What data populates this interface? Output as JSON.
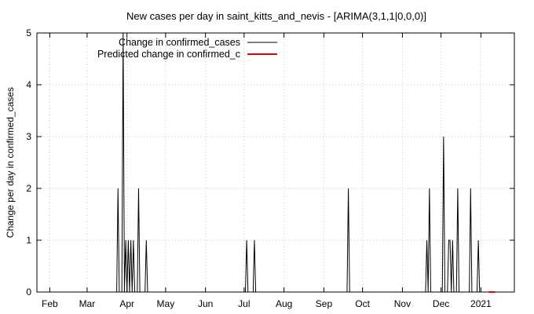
{
  "chart_data": {
    "type": "line",
    "title": "New cases per day in saint_kitts_and_nevis -  [ARIMA(3,1,1|0,0,0)]",
    "xlabel": "",
    "ylabel": "Change per day in confirmed_cases",
    "x_range": [
      "2021-01-19",
      "2021-01-19"
    ],
    "xlim": [
      "2020-01-22",
      "2021-01-27"
    ],
    "ylim": [
      0,
      5
    ],
    "y_ticks": [
      0,
      1,
      2,
      3,
      4,
      5
    ],
    "x_ticks": [
      {
        "date": "2020-02-01",
        "label": "Feb"
      },
      {
        "date": "2020-03-01",
        "label": "Mar"
      },
      {
        "date": "2020-04-01",
        "label": "Apr"
      },
      {
        "date": "2020-05-01",
        "label": "May"
      },
      {
        "date": "2020-06-01",
        "label": "Jun"
      },
      {
        "date": "2020-07-01",
        "label": "Jul"
      },
      {
        "date": "2020-08-01",
        "label": "Aug"
      },
      {
        "date": "2020-09-01",
        "label": "Sep"
      },
      {
        "date": "2020-10-01",
        "label": "Oct"
      },
      {
        "date": "2020-11-01",
        "label": "Nov"
      },
      {
        "date": "2020-12-01",
        "label": "Dec"
      },
      {
        "date": "2021-01-01",
        "label": "2021"
      }
    ],
    "grid": true,
    "legend_position": "top-left",
    "series": [
      {
        "name": "Change in confirmed_cases",
        "color": "#000000",
        "points": [
          [
            "2020-01-22",
            0
          ],
          [
            "2020-03-24",
            0
          ],
          [
            "2020-03-25",
            2
          ],
          [
            "2020-03-26",
            0
          ],
          [
            "2020-03-28",
            0
          ],
          [
            "2020-03-29",
            5
          ],
          [
            "2020-03-30",
            0
          ],
          [
            "2020-03-31",
            1
          ],
          [
            "2020-04-01",
            0
          ],
          [
            "2020-04-02",
            1
          ],
          [
            "2020-04-03",
            0
          ],
          [
            "2020-04-04",
            1
          ],
          [
            "2020-04-05",
            0
          ],
          [
            "2020-04-06",
            1
          ],
          [
            "2020-04-07",
            0
          ],
          [
            "2020-04-09",
            0
          ],
          [
            "2020-04-10",
            2
          ],
          [
            "2020-04-11",
            0
          ],
          [
            "2020-04-15",
            0
          ],
          [
            "2020-04-16",
            1
          ],
          [
            "2020-04-17",
            0
          ],
          [
            "2020-07-02",
            0
          ],
          [
            "2020-07-03",
            1
          ],
          [
            "2020-07-04",
            0
          ],
          [
            "2020-07-08",
            0
          ],
          [
            "2020-07-09",
            1
          ],
          [
            "2020-07-10",
            0
          ],
          [
            "2020-09-19",
            0
          ],
          [
            "2020-09-20",
            2
          ],
          [
            "2020-09-21",
            0
          ],
          [
            "2020-11-19",
            0
          ],
          [
            "2020-11-20",
            1
          ],
          [
            "2020-11-21",
            0
          ],
          [
            "2020-11-22",
            2
          ],
          [
            "2020-11-23",
            0
          ],
          [
            "2020-12-02",
            0
          ],
          [
            "2020-12-03",
            3
          ],
          [
            "2020-12-04",
            0
          ],
          [
            "2020-12-06",
            0
          ],
          [
            "2020-12-07",
            1
          ],
          [
            "2020-12-08",
            1
          ],
          [
            "2020-12-09",
            0
          ],
          [
            "2020-12-10",
            1
          ],
          [
            "2020-12-11",
            0
          ],
          [
            "2020-12-13",
            0
          ],
          [
            "2020-12-14",
            2
          ],
          [
            "2020-12-15",
            0
          ],
          [
            "2020-12-23",
            0
          ],
          [
            "2020-12-24",
            2
          ],
          [
            "2020-12-25",
            0
          ],
          [
            "2020-12-29",
            0
          ],
          [
            "2020-12-30",
            1
          ],
          [
            "2020-12-31",
            0
          ],
          [
            "2021-01-06",
            0
          ]
        ]
      },
      {
        "name": "Predicted change in confirmed_c",
        "color": "#e8000b",
        "points": [
          [
            "2021-01-07",
            0
          ],
          [
            "2021-01-12",
            0
          ]
        ]
      }
    ]
  }
}
